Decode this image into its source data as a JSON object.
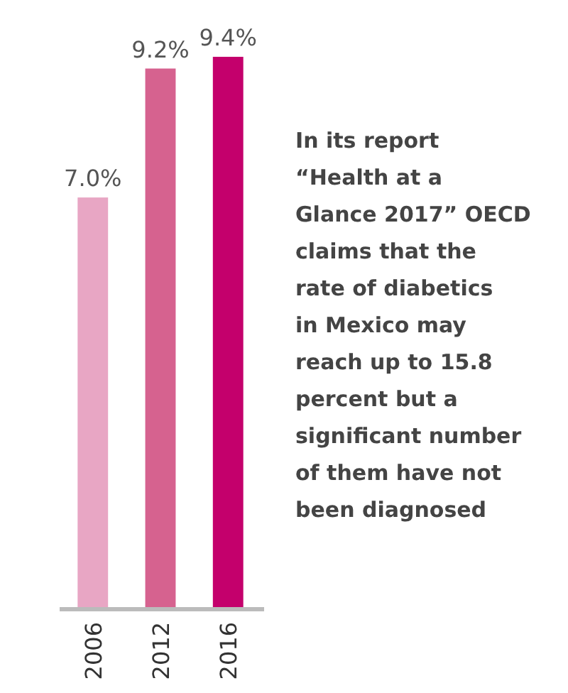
{
  "chart_data": {
    "type": "bar",
    "categories": [
      "2006",
      "2012",
      "2016"
    ],
    "values": [
      7.0,
      9.2,
      9.4
    ],
    "colors": [
      "#e8a6c4",
      "#d6628f",
      "#c4006c"
    ],
    "value_labels": [
      "7.0%",
      "9.2%",
      "9.4%"
    ],
    "annotations": [
      "In its report “Health at a Glance 2017” OECD claims that the rate of diabetics in Mexico may reach up to 15.8 percent but a significant number of them have not been diagnosed"
    ]
  }
}
